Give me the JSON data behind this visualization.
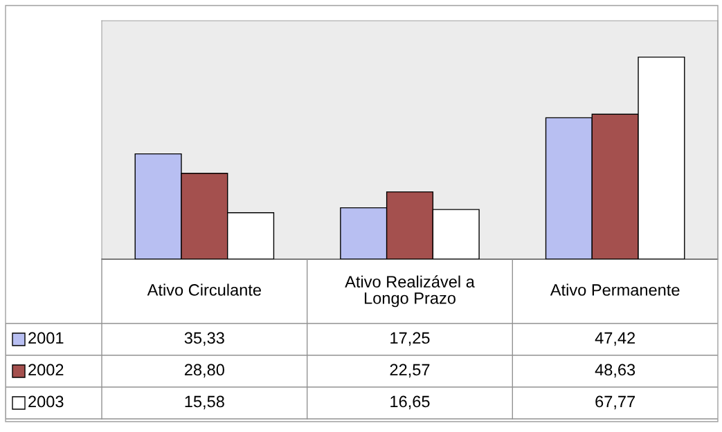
{
  "chart_data": {
    "type": "bar",
    "categories": [
      "Ativo Circulante",
      "Ativo Realizável a\nLongo Prazo",
      "Ativo Permanente"
    ],
    "series": [
      {
        "name": "2001",
        "color": "#b8bff2",
        "values": [
          35.33,
          17.25,
          47.42
        ],
        "value_labels": [
          "35,33",
          "17,25",
          "47,42"
        ]
      },
      {
        "name": "2002",
        "color": "#a4504e",
        "values": [
          28.8,
          22.57,
          48.63
        ],
        "value_labels": [
          "28,80",
          "22,57",
          "48,63"
        ]
      },
      {
        "name": "2003",
        "color": "#ffffff",
        "values": [
          15.58,
          16.65,
          67.77
        ],
        "value_labels": [
          "15,58",
          "16,65",
          "67,77"
        ]
      }
    ],
    "legend": "bottom",
    "tick_labels": false
  }
}
